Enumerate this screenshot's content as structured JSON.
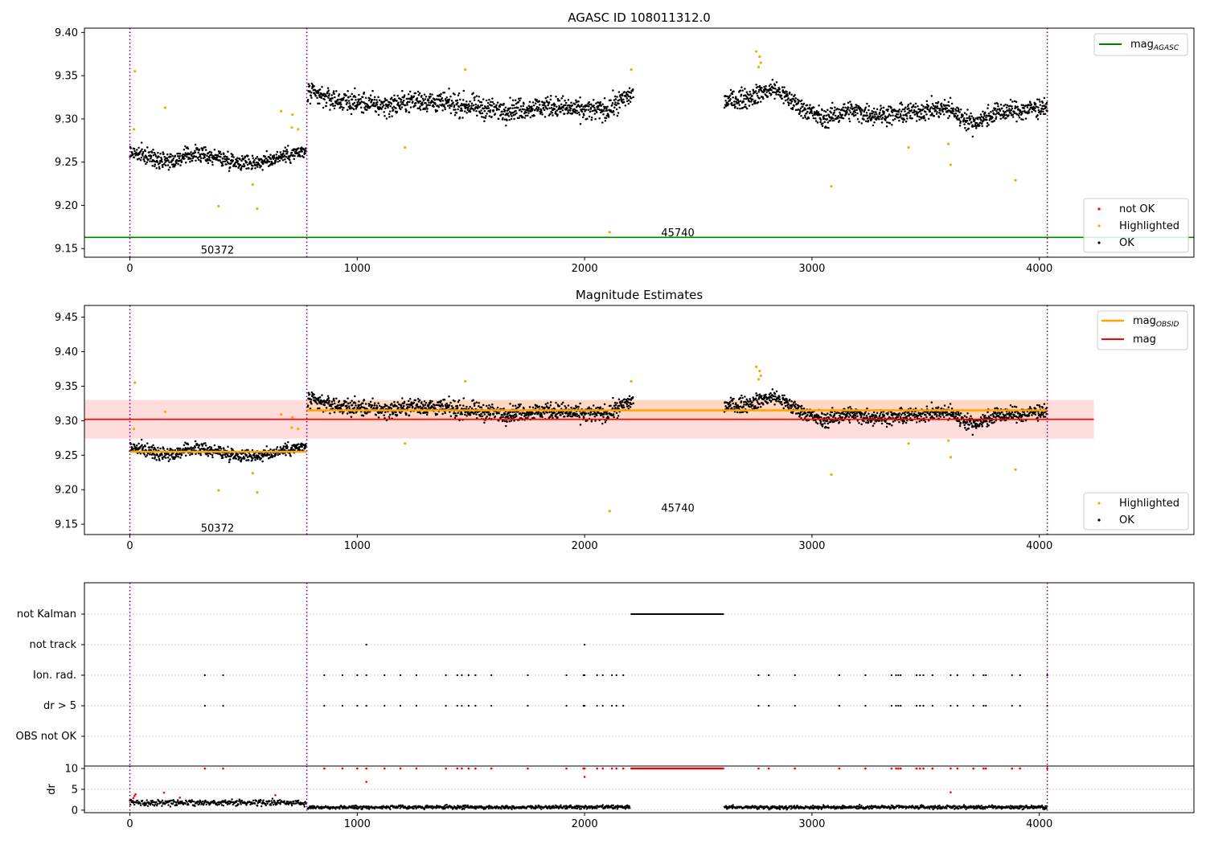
{
  "chart_data": [
    {
      "id": "agasc",
      "type": "scatter",
      "title": "AGASC ID 108011312.0",
      "xlim": [
        -200,
        4680
      ],
      "ylim": [
        9.14,
        9.405
      ],
      "xticks": [
        0,
        1000,
        2000,
        3000,
        4000
      ],
      "yticks": [
        9.15,
        9.2,
        9.25,
        9.3,
        9.35,
        9.4
      ],
      "vlines": [
        0,
        778,
        4035
      ],
      "hlines": [
        {
          "y": 9.163,
          "color": "#008000",
          "x0": -200,
          "x1": 4680
        }
      ],
      "annotations": [
        {
          "text": "50372",
          "x": 385,
          "y": 9.148
        },
        {
          "text": "45740",
          "x": 2410,
          "y": 9.168
        }
      ],
      "legend_upper": [
        {
          "label": "mag",
          "sub": "AGASC",
          "marker": "line",
          "color": "#008000"
        }
      ],
      "legend_lower": [
        {
          "label": "not OK",
          "marker": "dot",
          "color": "#ff0000"
        },
        {
          "label": "Highlighted",
          "marker": "dot",
          "color": "#ffa500"
        },
        {
          "label": "OK",
          "marker": "dot",
          "color": "#000000"
        }
      ],
      "highlighted_points": [
        [
          22,
          9.355
        ],
        [
          18,
          9.288
        ],
        [
          155,
          9.313
        ],
        [
          390,
          9.199
        ],
        [
          560,
          9.196
        ],
        [
          540,
          9.224
        ],
        [
          665,
          9.309
        ],
        [
          715,
          9.305
        ],
        [
          712,
          9.29
        ],
        [
          740,
          9.288
        ],
        [
          1210,
          9.267
        ],
        [
          1475,
          9.357
        ],
        [
          2110,
          9.169
        ],
        [
          2205,
          9.357
        ],
        [
          2755,
          9.378
        ],
        [
          2770,
          9.372
        ],
        [
          2765,
          9.36
        ],
        [
          2775,
          9.365
        ],
        [
          3085,
          9.222
        ],
        [
          3425,
          9.267
        ],
        [
          3610,
          9.247
        ],
        [
          3600,
          9.271
        ],
        [
          3895,
          9.229
        ]
      ],
      "ok_segments": [
        {
          "x0": 0,
          "x1": 775,
          "levels": [
            9.262,
            9.255,
            9.252,
            9.26,
            9.255,
            9.25,
            9.25,
            9.258,
            9.262
          ],
          "noise": 0.009
        },
        {
          "x0": 782,
          "x1": 2215,
          "levels": [
            9.33,
            9.322,
            9.318,
            9.315,
            9.322,
            9.318,
            9.315,
            9.31,
            9.312,
            9.315,
            9.31,
            9.31,
            9.33
          ],
          "noise": 0.012
        },
        {
          "x0": 2615,
          "x1": 4035,
          "levels": [
            9.32,
            9.325,
            9.335,
            9.315,
            9.3,
            9.31,
            9.305,
            9.305,
            9.31,
            9.312,
            9.295,
            9.308,
            9.31,
            9.315
          ],
          "noise": 0.011
        }
      ]
    },
    {
      "id": "mag",
      "type": "scatter",
      "title": "Magnitude Estimates",
      "xlim": [
        -200,
        4680
      ],
      "ylim": [
        9.135,
        9.467
      ],
      "xticks": [
        0,
        1000,
        2000,
        3000,
        4000
      ],
      "yticks": [
        9.15,
        9.2,
        9.25,
        9.3,
        9.35,
        9.4,
        9.45
      ],
      "vlines": [
        0,
        778,
        4035
      ],
      "mag_line": {
        "y": 9.302,
        "x0": -200,
        "x1": 4240,
        "color": "#ff0000"
      },
      "mag_band": {
        "y0": 9.274,
        "y1": 9.33,
        "x0": -200,
        "x1": 4240,
        "color": "#ffdddd"
      },
      "obsid_segments": [
        {
          "x0": 0,
          "x1": 778,
          "y": 9.255
        },
        {
          "x0": 778,
          "x1": 4035,
          "y": 9.315
        }
      ],
      "obsid_band": {
        "x0": 778,
        "x1": 4035,
        "y0": 9.3,
        "y1": 9.33,
        "color": "#ffd4b8"
      },
      "annotations": [
        {
          "text": "50372",
          "x": 385,
          "y": 9.144
        },
        {
          "text": "45740",
          "x": 2410,
          "y": 9.173
        }
      ],
      "legend_upper": [
        {
          "label": "mag",
          "sub": "OBSID",
          "marker": "line",
          "color": "#ffa500"
        },
        {
          "label": "mag",
          "sub": "",
          "marker": "line",
          "color": "#ff0000"
        }
      ],
      "legend_lower": [
        {
          "label": "Highlighted",
          "marker": "dot",
          "color": "#ffa500"
        },
        {
          "label": "OK",
          "marker": "dot",
          "color": "#000000"
        }
      ]
    },
    {
      "id": "flags",
      "type": "scatter",
      "xlim": [
        -200,
        4680
      ],
      "categories": [
        "not Kalman",
        "not track",
        "Ion. rad.",
        "dr > 5",
        "OBS not OK"
      ],
      "vlines": [
        0,
        778,
        4035
      ],
      "not_kalman": {
        "x0": 2205,
        "x1": 2610
      },
      "not_track_x": [
        1040,
        2000
      ],
      "ion_rad_x": [
        330,
        410,
        855,
        935,
        1000,
        1040,
        1120,
        1190,
        1260,
        1390,
        1440,
        1460,
        1490,
        1520,
        1590,
        1750,
        1920,
        1995,
        2000,
        2055,
        2080,
        2120,
        2140,
        2170,
        2765,
        2810,
        2925,
        3120,
        3235,
        3350,
        3370,
        3380,
        3390,
        3460,
        3475,
        3490,
        3530,
        3610,
        3640,
        3710,
        3755,
        3765,
        3880,
        3915,
        4035
      ],
      "dr5_x": [
        330,
        410,
        855,
        935,
        1000,
        1040,
        1120,
        1190,
        1260,
        1390,
        1440,
        1460,
        1490,
        1520,
        1590,
        1750,
        1920,
        1995,
        2000,
        2055,
        2080,
        2120,
        2140,
        2170,
        2765,
        2810,
        2925,
        3120,
        3235,
        3350,
        3370,
        3380,
        3390,
        3460,
        3475,
        3490,
        3530,
        3610,
        3640,
        3710,
        3755,
        3765,
        3880,
        3915,
        4035
      ]
    },
    {
      "id": "dr",
      "type": "scatter",
      "ylabel": "dr",
      "xlim": [
        -200,
        4680
      ],
      "ylim": [
        -0.6,
        10.6
      ],
      "xticks": [
        0,
        1000,
        2000,
        3000,
        4000
      ],
      "yticks": [
        0,
        5,
        10
      ],
      "vlines": [
        0,
        778,
        4035
      ],
      "red_points": [
        [
          20,
          3.4
        ],
        [
          15,
          2.9
        ],
        [
          25,
          3.8
        ],
        [
          150,
          4.2
        ],
        [
          220,
          3.0
        ],
        [
          640,
          3.6
        ],
        [
          1040,
          6.8
        ],
        [
          2000,
          8.0
        ],
        [
          3610,
          4.3
        ],
        [
          330,
          10
        ],
        [
          410,
          10
        ],
        [
          855,
          10
        ],
        [
          935,
          10
        ],
        [
          1000,
          10
        ],
        [
          1040,
          10
        ],
        [
          1120,
          10
        ],
        [
          1190,
          10
        ],
        [
          1260,
          10
        ],
        [
          1390,
          10
        ],
        [
          1440,
          10
        ],
        [
          1460,
          10
        ],
        [
          1490,
          10
        ],
        [
          1520,
          10
        ],
        [
          1590,
          10
        ],
        [
          1750,
          10
        ],
        [
          1920,
          10
        ],
        [
          1995,
          10
        ],
        [
          2000,
          10
        ],
        [
          2055,
          10
        ],
        [
          2080,
          10
        ],
        [
          2120,
          10
        ],
        [
          2140,
          10
        ],
        [
          2170,
          10
        ],
        [
          2765,
          10
        ],
        [
          2810,
          10
        ],
        [
          2925,
          10
        ],
        [
          3120,
          10
        ],
        [
          3235,
          10
        ],
        [
          3350,
          10
        ],
        [
          3370,
          10
        ],
        [
          3380,
          10
        ],
        [
          3390,
          10
        ],
        [
          3460,
          10
        ],
        [
          3475,
          10
        ],
        [
          3490,
          10
        ],
        [
          3530,
          10
        ],
        [
          3610,
          10
        ],
        [
          3640,
          10
        ],
        [
          3710,
          10
        ],
        [
          3755,
          10
        ],
        [
          3765,
          10
        ],
        [
          3880,
          10
        ],
        [
          3915,
          10
        ],
        [
          4035,
          10
        ]
      ],
      "red_dense": {
        "x0": 2205,
        "x1": 2610,
        "y": 10
      },
      "black_segments": [
        {
          "x0": 0,
          "x1": 775,
          "mean": 1.8,
          "noise": 0.7
        },
        {
          "x0": 782,
          "x1": 2200,
          "mean": 0.7,
          "noise": 0.4
        },
        {
          "x0": 2615,
          "x1": 4035,
          "mean": 0.7,
          "noise": 0.4
        }
      ]
    }
  ]
}
